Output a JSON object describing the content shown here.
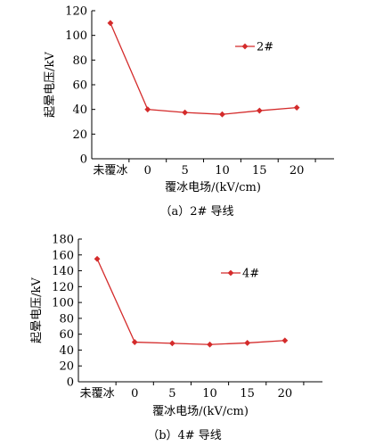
{
  "chart_data": [
    {
      "type": "line",
      "caption": "（a）2# 导线",
      "categories": [
        "未覆冰",
        "0",
        "5",
        "10",
        "15",
        "20"
      ],
      "xlabel": "覆冰电场/(kV/cm)",
      "ylabel": "起晕电压/kV",
      "ylim": [
        0,
        120
      ],
      "yticks": [
        0,
        20,
        40,
        60,
        80,
        100,
        120
      ],
      "grid": false,
      "legend": "right",
      "series_color": "#d42b2b",
      "series": [
        {
          "name": "2#",
          "values": [
            110,
            40,
            37.5,
            36,
            39,
            41.5
          ]
        }
      ]
    },
    {
      "type": "line",
      "caption": "（b）4# 导线",
      "categories": [
        "未覆冰",
        "0",
        "5",
        "10",
        "15",
        "20"
      ],
      "xlabel": "覆冰电场/(kV/cm)",
      "ylabel": "起晕电压/kV",
      "ylim": [
        0,
        180
      ],
      "yticks": [
        0,
        20,
        40,
        60,
        80,
        100,
        120,
        140,
        160,
        180
      ],
      "grid": false,
      "legend": "right",
      "series_color": "#d42b2b",
      "series": [
        {
          "name": "4#",
          "values": [
            155,
            50,
            48.5,
            47,
            49,
            52
          ]
        }
      ]
    }
  ]
}
